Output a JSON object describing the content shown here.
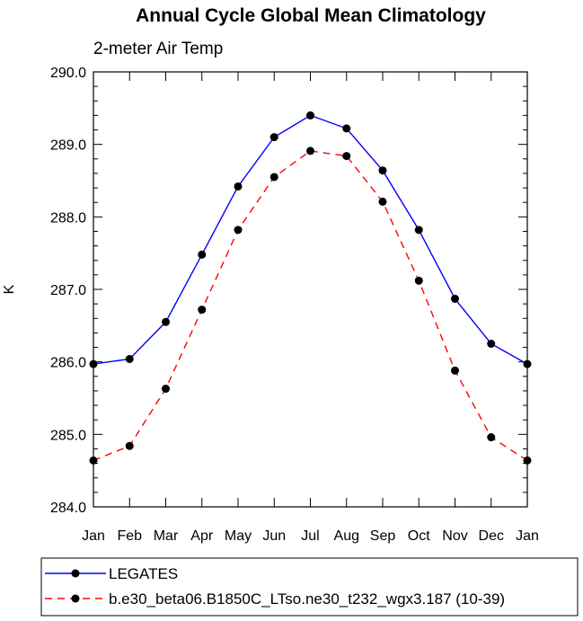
{
  "chart_data": {
    "type": "line",
    "title": "Annual Cycle Global Mean Climatology",
    "subtitle": "2-meter Air Temp",
    "ylabel": "K",
    "xlabel": "",
    "categories": [
      "Jan",
      "Feb",
      "Mar",
      "Apr",
      "May",
      "Jun",
      "Jul",
      "Aug",
      "Sep",
      "Oct",
      "Nov",
      "Dec",
      "Jan"
    ],
    "ylim": [
      284.0,
      290.0
    ],
    "yticks": [
      "284.0",
      "285.0",
      "286.0",
      "287.0",
      "288.0",
      "289.0",
      "290.0"
    ],
    "series": [
      {
        "name": "LEGATES",
        "color": "#0000ff",
        "dash": "solid",
        "values": [
          285.97,
          286.04,
          286.55,
          287.48,
          288.42,
          289.1,
          289.4,
          289.22,
          288.64,
          287.82,
          286.87,
          286.25,
          285.97
        ]
      },
      {
        "name": "b.e30_beta06.B1850C_LTso.ne30_t232_wgx3.187 (10-39)",
        "color": "#ff0000",
        "dash": "dashed",
        "values": [
          284.64,
          284.84,
          285.63,
          286.72,
          287.82,
          288.55,
          288.91,
          288.84,
          288.21,
          287.12,
          285.88,
          284.96,
          284.64
        ]
      }
    ],
    "grid": false,
    "legend_position": "bottom"
  }
}
